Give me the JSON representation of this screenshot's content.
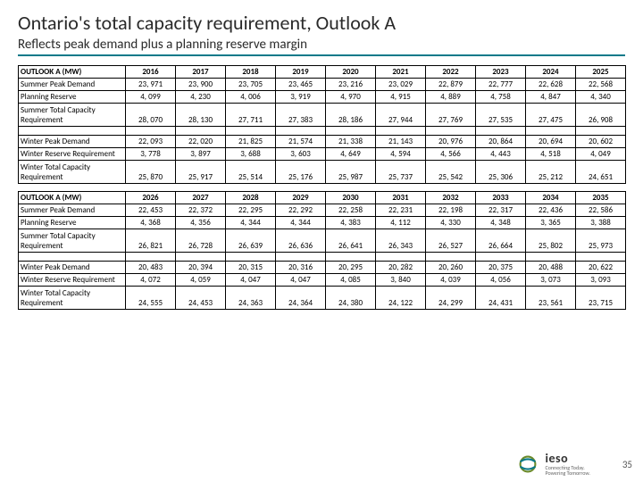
{
  "title": "Ontario's total capacity requirement, Outlook A",
  "subtitle": "Reflects peak demand plus a planning reserve margin",
  "page_number": "35",
  "brand": {
    "name": "ieso",
    "tag1": "Connecting Today.",
    "tag2": "Powering Tomorrow."
  },
  "colors": {
    "accent": "#0a7a8a",
    "text": "#2a2a2a",
    "border": "#000000"
  },
  "tables": [
    {
      "header_label": "OUTLOOK A (MW)",
      "years": [
        "2016",
        "2017",
        "2018",
        "2019",
        "2020",
        "2021",
        "2022",
        "2023",
        "2024",
        "2025"
      ],
      "rows": [
        {
          "label": "Summer Peak Demand",
          "vals": [
            "23, 971",
            "23, 900",
            "23, 705",
            "23, 465",
            "23, 216",
            "23, 029",
            "22, 879",
            "22, 777",
            "22, 628",
            "22, 568"
          ]
        },
        {
          "label": "Planning Reserve",
          "vals": [
            "4, 099",
            "4, 230",
            "4, 006",
            "3, 919",
            "4, 970",
            "4, 915",
            "4, 889",
            "4, 758",
            "4, 847",
            "4, 340"
          ]
        },
        {
          "label": "Summer Total Capacity Requirement",
          "vals": [
            "28, 070",
            "28, 130",
            "27, 711",
            "27, 383",
            "28, 186",
            "27, 944",
            "27, 769",
            "27, 535",
            "27, 475",
            "26, 908"
          ],
          "tall": true
        }
      ],
      "rows2": [
        {
          "label": "Winter Peak Demand",
          "vals": [
            "22, 093",
            "22, 020",
            "21, 825",
            "21, 574",
            "21, 338",
            "21, 143",
            "20, 976",
            "20, 864",
            "20, 694",
            "20, 602"
          ]
        },
        {
          "label": "Winter Reserve Requirement",
          "vals": [
            "3, 778",
            "3, 897",
            "3, 688",
            "3, 603",
            "4, 649",
            "4, 594",
            "4, 566",
            "4, 443",
            "4, 518",
            "4, 049"
          ]
        },
        {
          "label": "Winter Total Capacity Requirement",
          "vals": [
            "25, 870",
            "25, 917",
            "25, 514",
            "25, 176",
            "25, 987",
            "25, 737",
            "25, 542",
            "25, 306",
            "25, 212",
            "24, 651"
          ],
          "tall": true
        }
      ]
    },
    {
      "header_label": "OUTLOOK A (MW)",
      "years": [
        "2026",
        "2027",
        "2028",
        "2029",
        "2030",
        "2031",
        "2032",
        "2033",
        "2034",
        "2035"
      ],
      "rows": [
        {
          "label": "Summer Peak Demand",
          "vals": [
            "22, 453",
            "22, 372",
            "22, 295",
            "22, 292",
            "22, 258",
            "22, 231",
            "22, 198",
            "22, 317",
            "22, 436",
            "22, 586"
          ]
        },
        {
          "label": "Planning Reserve",
          "vals": [
            "4, 368",
            "4, 356",
            "4, 344",
            "4, 344",
            "4, 383",
            "4, 112",
            "4, 330",
            "4, 348",
            "3, 365",
            "3, 388"
          ]
        },
        {
          "label": "Summer Total Capacity Requirement",
          "vals": [
            "26, 821",
            "26, 728",
            "26, 639",
            "26, 636",
            "26, 641",
            "26, 343",
            "26, 527",
            "26, 664",
            "25, 802",
            "25, 973"
          ],
          "tall": true
        }
      ],
      "rows2": [
        {
          "label": "Winter Peak Demand",
          "vals": [
            "20, 483",
            "20, 394",
            "20, 315",
            "20, 316",
            "20, 295",
            "20, 282",
            "20, 260",
            "20, 375",
            "20, 488",
            "20, 622"
          ]
        },
        {
          "label": "Winter Reserve Requirement",
          "vals": [
            "4, 072",
            "4, 059",
            "4, 047",
            "4, 047",
            "4, 085",
            "3, 840",
            "4, 039",
            "4, 056",
            "3, 073",
            "3, 093"
          ]
        },
        {
          "label": "Winter Total Capacity Requirement",
          "vals": [
            "24, 555",
            "24, 453",
            "24, 363",
            "24, 364",
            "24, 380",
            "24, 122",
            "24, 299",
            "24, 431",
            "23, 561",
            "23, 715"
          ],
          "tall": true
        }
      ]
    }
  ]
}
